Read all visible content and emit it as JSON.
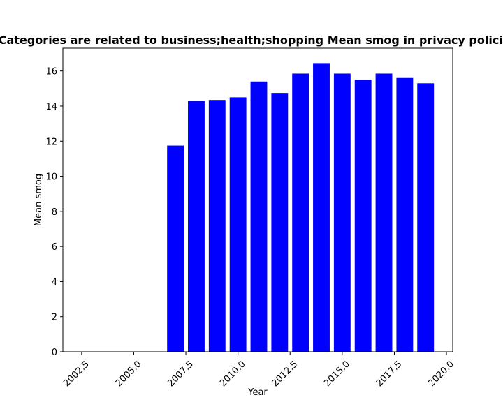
{
  "chart_data": {
    "type": "bar",
    "title": "Categories are related to business;health;shopping Mean smog in privacy policies",
    "xlabel": "Year",
    "ylabel": "Mean smog",
    "x": [
      2007,
      2008,
      2009,
      2010,
      2011,
      2012,
      2013,
      2014,
      2015,
      2016,
      2017,
      2018,
      2019
    ],
    "values": [
      11.75,
      14.3,
      14.35,
      14.5,
      15.4,
      14.75,
      15.85,
      16.45,
      15.85,
      15.5,
      15.85,
      15.6,
      15.3
    ],
    "bar_width": 0.8,
    "xlim": [
      2001.6,
      2020.3
    ],
    "ylim": [
      0,
      17.3
    ],
    "xticks": [
      "2002.5",
      "2005.0",
      "2007.5",
      "2010.0",
      "2012.5",
      "2015.0",
      "2017.5",
      "2020.0"
    ],
    "xtick_values": [
      2002.5,
      2005.0,
      2007.5,
      2010.0,
      2012.5,
      2015.0,
      2017.5,
      2020.0
    ],
    "yticks": [
      "0",
      "2",
      "4",
      "6",
      "8",
      "10",
      "12",
      "14",
      "16"
    ],
    "ytick_values": [
      0,
      2,
      4,
      6,
      8,
      10,
      12,
      14,
      16
    ],
    "grid": false,
    "bar_color": "#0000ff"
  }
}
